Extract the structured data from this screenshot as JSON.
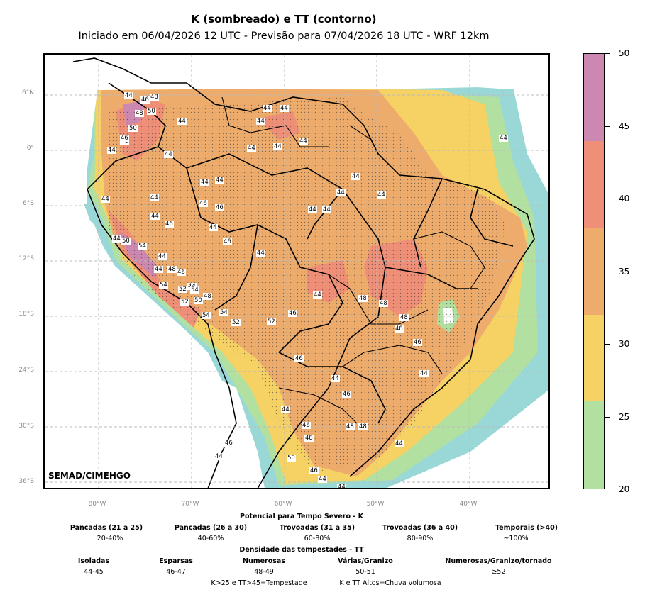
{
  "title": "K (sombreado) e TT (contorno)",
  "subtitle": "Iniciado em 06/04/2026 12 UTC - Previsão para 07/04/2026 18 UTC - WRF 12km",
  "credit": "SEMAD/CIMEHGO",
  "map": {
    "lat_labels": [
      "6°N",
      "0°",
      "6°S",
      "12°S",
      "18°S",
      "24°S",
      "30°S",
      "36°S"
    ],
    "lon_labels": [
      "80°W",
      "70°W",
      "60°W",
      "50°W",
      "40°W"
    ],
    "contour_labels": [
      "44",
      "46",
      "48",
      "48",
      "50",
      "50",
      "46",
      "44",
      "44",
      "44",
      "44",
      "44",
      "44",
      "44",
      "44",
      "44",
      "44",
      "44",
      "44",
      "44",
      "44",
      "44",
      "44",
      "46",
      "46",
      "44",
      "46",
      "44",
      "46",
      "44",
      "44",
      "46",
      "44",
      "44",
      "44",
      "50",
      "54",
      "44",
      "44",
      "48",
      "46",
      "54",
      "44",
      "52",
      "54",
      "50",
      "48",
      "52",
      "54",
      "54",
      "52",
      "52",
      "44",
      "48",
      "46",
      "48",
      "48",
      "48",
      "46",
      "46",
      "44",
      "46",
      "48",
      "44",
      "44",
      "46",
      "48",
      "48",
      "44",
      "46",
      "44",
      "50",
      "46",
      "44",
      "44"
    ]
  },
  "colorbar": {
    "ticks": [
      "50",
      "45",
      "40",
      "35",
      "30",
      "25",
      "20"
    ],
    "colors": [
      "#cc88b0",
      "#ef8f77",
      "#eeac6c",
      "#f6d265",
      "#b1e0a1",
      "#99d8d6"
    ]
  },
  "legend": {
    "k_title": "Potencial para Tempo Severo - K",
    "k_categories": [
      {
        "name": "Pancadas (21 a 25)",
        "value": "20-40%"
      },
      {
        "name": "Pancadas (26 a 30)",
        "value": "40-60%"
      },
      {
        "name": "Trovoadas (31 a 35)",
        "value": "60-80%"
      },
      {
        "name": "Trovoadas (36 a 40)",
        "value": "80-90%"
      },
      {
        "name": "Temporais (>40)",
        "value": "~100%"
      }
    ],
    "tt_title": "Densidade das tempestades - TT",
    "tt_categories": [
      {
        "name": "Isoladas",
        "value": "44-45"
      },
      {
        "name": "Esparsas",
        "value": "46-47"
      },
      {
        "name": "Numerosas",
        "value": "48-49"
      },
      {
        "name": "Várias/Granizo",
        "value": "50-51"
      },
      {
        "name": "Numerosas/Granizo/tornado",
        "value": "≥52"
      }
    ],
    "footnote_left": "K>25 e TT>45=Tempestade",
    "footnote_right": "K e TT Altos=Chuva volumosa"
  }
}
